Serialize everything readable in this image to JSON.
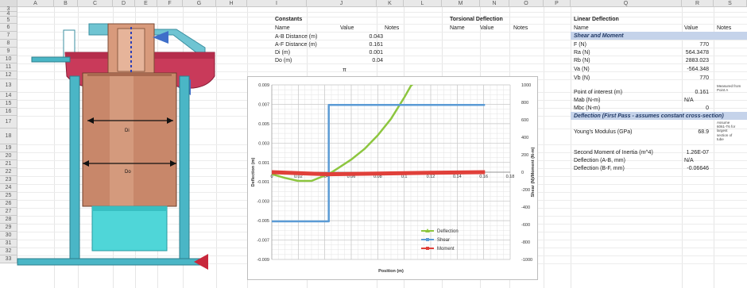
{
  "columns": [
    "A",
    "B",
    "C",
    "D",
    "E",
    "F",
    "G",
    "H",
    "I",
    "J",
    "K",
    "L",
    "M",
    "N",
    "O",
    "P",
    "Q",
    "R",
    "S"
  ],
  "rows": [
    "3",
    "4",
    "5",
    "6",
    "7",
    "8",
    "9",
    "10",
    "11",
    "12",
    "13",
    "14",
    "15",
    "16",
    "17",
    "18",
    "19",
    "20",
    "21",
    "22",
    "23",
    "24",
    "25",
    "26",
    "27",
    "28",
    "29",
    "30",
    "31",
    "32",
    "33"
  ],
  "constants": {
    "title": "Constants",
    "headers": [
      "Name",
      "Value",
      "Notes"
    ],
    "rows": [
      {
        "name": "A-B Distance (m)",
        "value": "0.043"
      },
      {
        "name": "A-F Distance (m)",
        "value": "0.161"
      },
      {
        "name": "Di (m)",
        "value": "0.001"
      },
      {
        "name": "Do (m)",
        "value": "0.04"
      }
    ],
    "stray_text": "π"
  },
  "torsional": {
    "title": "Torsional Deflection",
    "headers": [
      "Name",
      "Value",
      "Notes"
    ]
  },
  "linear": {
    "title": "Linear Deflection",
    "headers": [
      "Name",
      "Value",
      "Notes"
    ],
    "section1": "Shear and Moment",
    "rows1": [
      {
        "name": "F (N)",
        "value": "770"
      },
      {
        "name": "Ra (N)",
        "value": "564.3478"
      },
      {
        "name": "Rb (N)",
        "value": "2883.023"
      },
      {
        "name": "Va (N)",
        "value": "-564.348"
      },
      {
        "name": "Vb (N)",
        "value": "770"
      }
    ],
    "poi": {
      "name": "Point of interest (m)",
      "value": "0.161",
      "note": "Measured from Point A"
    },
    "mab": {
      "name": "Mab (N-m)",
      "value": "N/A"
    },
    "mbc": {
      "name": "Mbc (N-m)",
      "value": "0"
    },
    "section2": "Deflection (First Pass - assumes constant cross-section)",
    "youngs": {
      "name": "Young's Modulus (GPa)",
      "value": "68.9",
      "note": "Assume 6061-T6 for largest section of tube"
    },
    "moi": {
      "name": "Second Moment of Inertia (m^4)",
      "value": "1.26E-07"
    },
    "defl_ab": {
      "name": "Deflection (A-B, mm)",
      "value": "N/A"
    },
    "defl_bf": {
      "name": "Deflection (B-F, mm)",
      "value": "-0.06646"
    }
  },
  "drawing": {
    "di_label": "Di",
    "do_label": "Do",
    "colors": {
      "copper": "#c8876a",
      "cyan": "#4fd6d8",
      "frame": "#4ab6c6",
      "pink": "#c93a5a",
      "blue": "#4166c8",
      "red": "#c8283c"
    }
  },
  "chart_data": {
    "type": "line",
    "xlabel": "Position (m)",
    "ylabel_left": "Deflection (m)",
    "ylabel_right": "Shear (N)/Moment (N-m)",
    "xlim": [
      0,
      0.18
    ],
    "ylim_left": [
      -0.009,
      0.009
    ],
    "ylim_right": [
      -1000,
      1000
    ],
    "x_ticks": [
      "0",
      "0.02",
      "0.04",
      "0.06",
      "0.08",
      "0.1",
      "0.12",
      "0.14",
      "0.16",
      "0.18"
    ],
    "y_left_ticks": [
      "0.009",
      "0.007",
      "0.005",
      "0.003",
      "0.001",
      "-0.001",
      "-0.003",
      "-0.005",
      "-0.007",
      "-0.009"
    ],
    "y_right_ticks": [
      "1000",
      "800",
      "600",
      "400",
      "200",
      "0",
      "-200",
      "-400",
      "-600",
      "-800",
      "-1000"
    ],
    "series": [
      {
        "name": "Deflection",
        "axis": "left",
        "color": "#8dc63f",
        "x": [
          0,
          0.01,
          0.02,
          0.03,
          0.043,
          0.05,
          0.06,
          0.07,
          0.08,
          0.09,
          0.1,
          0.105,
          0.11
        ],
        "y": [
          -0.0002,
          -0.0006,
          -0.0009,
          -0.0009,
          -0.0002,
          0.0004,
          0.0013,
          0.0024,
          0.0038,
          0.0055,
          0.0077,
          0.0089,
          0.0095
        ]
      },
      {
        "name": "Shear",
        "axis": "right",
        "color": "#5b9bd5",
        "x": [
          0,
          0.043,
          0.043,
          0.161
        ],
        "y": [
          -564,
          -564,
          770,
          770
        ]
      },
      {
        "name": "Moment",
        "axis": "right",
        "color": "#e0403a",
        "x": [
          0,
          0.02,
          0.043,
          0.08,
          0.12,
          0.161
        ],
        "y": [
          0,
          -12,
          -24,
          -15,
          -6,
          0
        ]
      }
    ],
    "legend": [
      "Deflection",
      "Shear",
      "Moment"
    ],
    "legend_position": "bottom-right",
    "grid": true
  }
}
